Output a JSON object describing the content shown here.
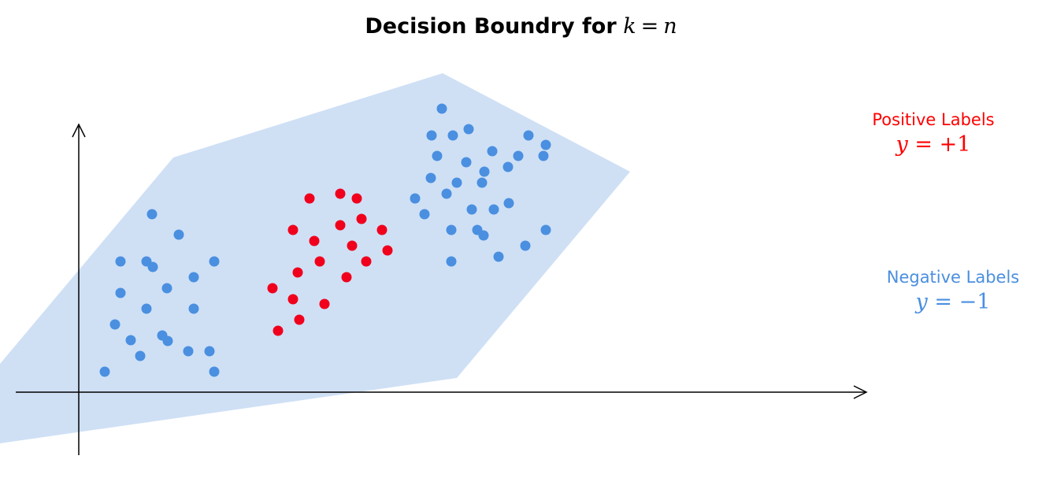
{
  "title": {
    "text": "Decision Boundry for",
    "lhs": "k",
    "op": "=",
    "rhs": "n"
  },
  "legend": {
    "positive": {
      "label": "Positive Labels",
      "var": "y",
      "op": "=",
      "value": "+1",
      "color": "#ff0000"
    },
    "negative": {
      "label": "Negative Labels",
      "var": "y",
      "op": "=",
      "value": "−1",
      "color": "#4a8fe0"
    }
  },
  "colors": {
    "region": "#cfe0f5",
    "positive": "#f0001c",
    "negative": "#4a8fe0",
    "axis": "#000000"
  },
  "icons": {
    "x_axis_end": "arrow-right-icon",
    "y_axis_end": "arrow-up-icon"
  },
  "chart_data": {
    "type": "scatter",
    "series": [
      {
        "label": "Positive",
        "points": [
          [
            393,
            252
          ],
          [
            432,
            246
          ],
          [
            453,
            252
          ],
          [
            459,
            278
          ],
          [
            432,
            286
          ],
          [
            372,
            292
          ],
          [
            485,
            292
          ],
          [
            399,
            306
          ],
          [
            447,
            312
          ],
          [
            492,
            318
          ],
          [
            406,
            332
          ],
          [
            465,
            332
          ],
          [
            378,
            346
          ],
          [
            440,
            352
          ],
          [
            346,
            366
          ],
          [
            372,
            380
          ],
          [
            412,
            386
          ],
          [
            380,
            406
          ],
          [
            353,
            420
          ]
        ]
      },
      {
        "label": "Negative",
        "points": [
          [
            193,
            272
          ],
          [
            227,
            298
          ],
          [
            153,
            332
          ],
          [
            186,
            332
          ],
          [
            194,
            339
          ],
          [
            272,
            332
          ],
          [
            246,
            352
          ],
          [
            212,
            366
          ],
          [
            153,
            372
          ],
          [
            186,
            392
          ],
          [
            246,
            392
          ],
          [
            146,
            412
          ],
          [
            206,
            426
          ],
          [
            213,
            433
          ],
          [
            166,
            432
          ],
          [
            239,
            446
          ],
          [
            266,
            446
          ],
          [
            178,
            452
          ],
          [
            133,
            472
          ],
          [
            272,
            472
          ],
          [
            561,
            138
          ],
          [
            548,
            172
          ],
          [
            575,
            172
          ],
          [
            595,
            164
          ],
          [
            671,
            172
          ],
          [
            693,
            184
          ],
          [
            555,
            198
          ],
          [
            625,
            192
          ],
          [
            658,
            198
          ],
          [
            690,
            198
          ],
          [
            592,
            206
          ],
          [
            615,
            218
          ],
          [
            645,
            212
          ],
          [
            547,
            226
          ],
          [
            580,
            232
          ],
          [
            612,
            232
          ],
          [
            567,
            246
          ],
          [
            527,
            252
          ],
          [
            599,
            266
          ],
          [
            627,
            266
          ],
          [
            646,
            258
          ],
          [
            539,
            272
          ],
          [
            573,
            292
          ],
          [
            606,
            292
          ],
          [
            614,
            299
          ],
          [
            693,
            292
          ],
          [
            667,
            312
          ],
          [
            573,
            332
          ],
          [
            633,
            326
          ]
        ]
      }
    ]
  }
}
